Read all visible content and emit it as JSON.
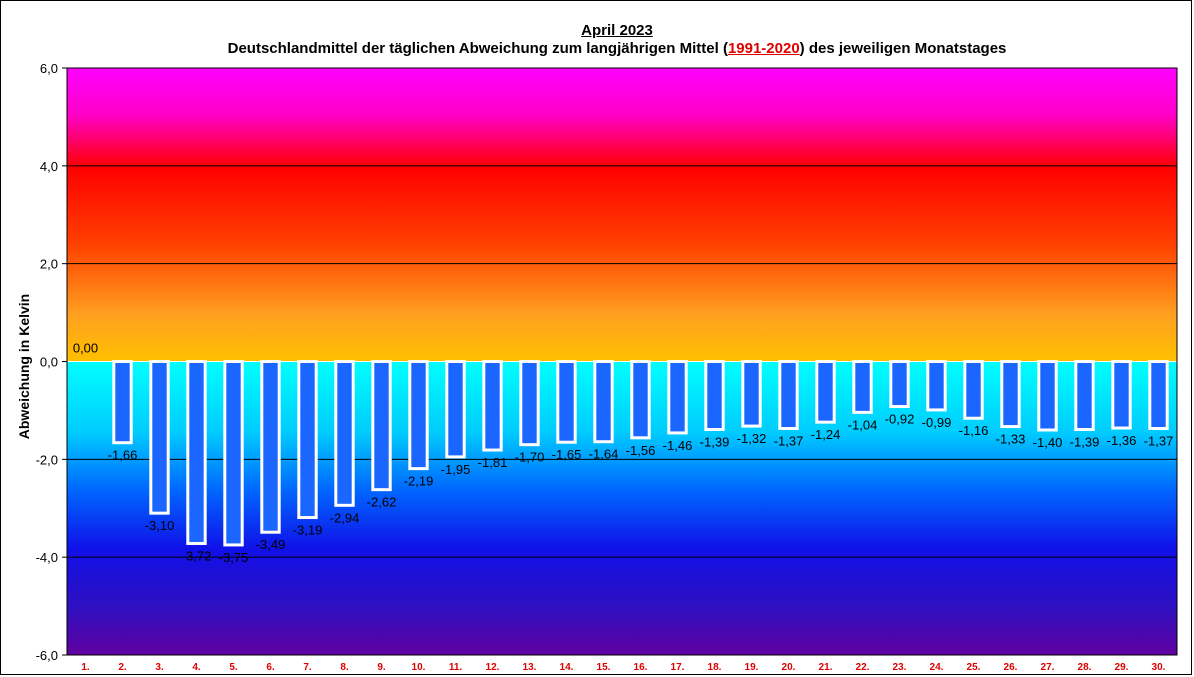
{
  "title": "April 2023",
  "subtitle_pre": "Deutschlandmittel der täglichen Abweichung zum langjährigen Mittel (",
  "subtitle_ref": "1991-2020",
  "subtitle_post": ") des jeweiligen Monatstages",
  "chart_data": {
    "type": "bar",
    "ylabel": "Abweichung  in Kelvin",
    "ylim": [
      -6,
      6
    ],
    "yticks": [
      "6,0",
      "4,0",
      "2,0",
      "0,0",
      "-2,0",
      "-4,0",
      "-6,0"
    ],
    "grid": true,
    "categories": [
      "1.",
      "2.",
      "3.",
      "4.",
      "5.",
      "6.",
      "7.",
      "8.",
      "9.",
      "10.",
      "11.",
      "12.",
      "13.",
      "14.",
      "15.",
      "16.",
      "17.",
      "18.",
      "19.",
      "20.",
      "21.",
      "22.",
      "23.",
      "24.",
      "25.",
      "26.",
      "27.",
      "28.",
      "29.",
      "30."
    ],
    "values": [
      0.0,
      -1.66,
      -3.1,
      -3.72,
      -3.75,
      -3.49,
      -3.19,
      -2.94,
      -2.62,
      -2.19,
      -1.95,
      -1.81,
      -1.7,
      -1.65,
      -1.64,
      -1.56,
      -1.46,
      -1.39,
      -1.32,
      -1.37,
      -1.24,
      -1.04,
      -0.92,
      -0.99,
      -1.16,
      -1.33,
      -1.4,
      -1.39,
      -1.36,
      -1.37
    ],
    "labels": [
      "0,00",
      "-1,66",
      "-3,10",
      "-3,72",
      "-3,75",
      "-3,49",
      "-3,19",
      "-2,94",
      "-2,62",
      "-2,19",
      "-1,95",
      "-1,81",
      "-1,70",
      "-1,65",
      "-1,64",
      "-1,56",
      "-1,46",
      "-1,39",
      "-1,32",
      "-1,37",
      "-1,24",
      "-1,04",
      "-0,92",
      "-0,99",
      "-1,16",
      "-1,33",
      "-1,40",
      "-1,39",
      "-1,36",
      "-1,37"
    ],
    "bar_color": "#1a66ff",
    "bar_outline": "#ffffff"
  }
}
